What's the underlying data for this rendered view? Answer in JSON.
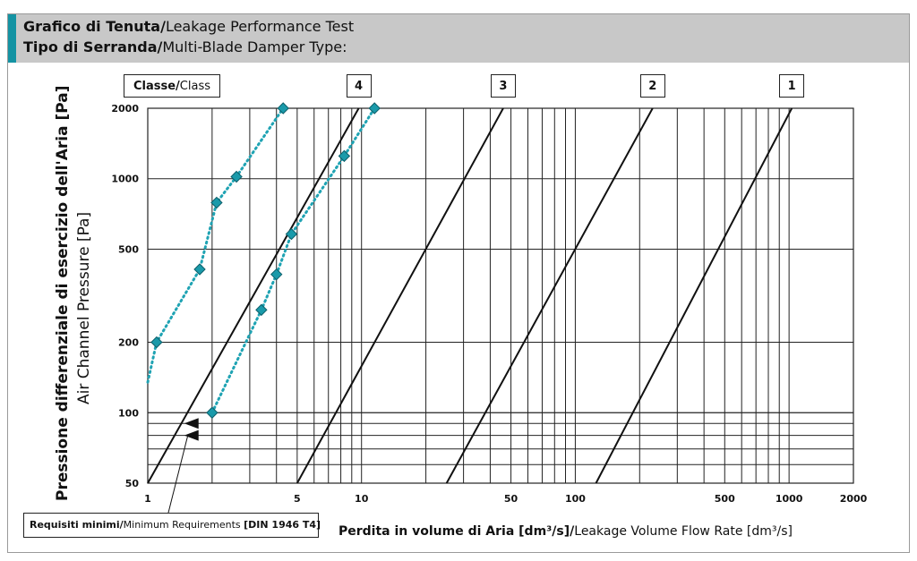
{
  "header": {
    "title_bold": "Grafico di Tenuta/",
    "title_rest": "Leakage Performance Test",
    "subtitle_bold": "Tipo di Serranda/",
    "subtitle_rest": "Multi-Blade Damper Type:"
  },
  "class_label": {
    "bold": "Classe/",
    "rest": "Class"
  },
  "requirements": {
    "bold": "Requisiti minimi/",
    "rest": "Minimum Requirements ",
    "std": "[DIN 1946 T4]"
  },
  "x_title": {
    "bold": "Perdita in volume di Aria [dm³/s]/",
    "rest": "Leakage Volume Flow Rate [dm³/s]"
  },
  "y_title_main": "Pressione differenziale di esercizio dell'Aria [Pa]",
  "y_title_sub": "Air Channel Pressure [Pa]",
  "colors": {
    "accent": "#1493a3",
    "series": "#1fa3b3",
    "marker": "#1a9aaa",
    "grid": "#222222"
  },
  "chart_data": {
    "type": "line",
    "x_scale": "log",
    "y_scale": "log",
    "xlim": [
      1,
      2000
    ],
    "ylim": [
      50,
      2000
    ],
    "x_ticks": [
      1,
      5,
      10,
      50,
      100,
      500,
      1000,
      2000
    ],
    "x_tick_labels": [
      "1",
      "5",
      "10",
      "50",
      "100",
      "500",
      "1000",
      "2000"
    ],
    "y_ticks": [
      50,
      100,
      200,
      500,
      1000,
      2000
    ],
    "y_tick_labels": [
      "50",
      "100",
      "200",
      "500",
      "1000",
      "2000"
    ],
    "grid": true,
    "class_lines": [
      {
        "name": "4",
        "points": [
          [
            1.0,
            50
          ],
          [
            9.7,
            2000
          ]
        ]
      },
      {
        "name": "3",
        "points": [
          [
            5.0,
            50
          ],
          [
            46,
            2000
          ]
        ]
      },
      {
        "name": "2",
        "points": [
          [
            25,
            50
          ],
          [
            230,
            2000
          ]
        ]
      },
      {
        "name": "1",
        "points": [
          [
            125,
            50
          ],
          [
            1030,
            2000
          ]
        ]
      }
    ],
    "series": [
      {
        "values": [
          [
            0.65,
            135
          ],
          [
            1.1,
            200
          ],
          [
            1.75,
            410
          ],
          [
            2.1,
            790
          ],
          [
            2.6,
            1020
          ],
          [
            4.3,
            2000
          ]
        ]
      },
      {
        "values": [
          [
            2.0,
            100
          ],
          [
            3.4,
            275
          ],
          [
            4.0,
            390
          ],
          [
            4.7,
            580
          ],
          [
            8.3,
            1250
          ],
          [
            11.5,
            2000
          ]
        ]
      }
    ],
    "min_requirement_lines": [
      100,
      90,
      80,
      70,
      60
    ],
    "arrows": [
      80,
      90
    ]
  }
}
